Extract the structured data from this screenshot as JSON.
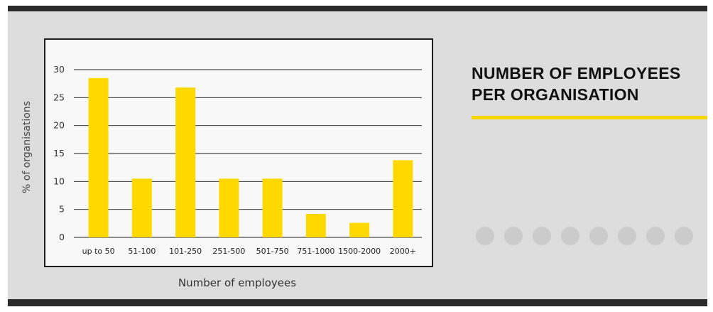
{
  "title_line1": "NUMBER OF EMPLOYEES",
  "title_line2": "PER ORGANISATION",
  "accent_color": "#f5d600",
  "bar_color": "#ffd800",
  "pagination_count": 8,
  "chart_data": {
    "type": "bar",
    "title": "NUMBER OF EMPLOYEES PER ORGANISATION",
    "xlabel": "Number of employees",
    "ylabel": "% of organisations",
    "categories": [
      "up to 50",
      "51-100",
      "101-250",
      "251-500",
      "501-750",
      "751-1000",
      "1500-2000",
      "2000+"
    ],
    "values": [
      28.5,
      10.5,
      26.8,
      10.5,
      10.5,
      4.2,
      2.6,
      13.8
    ],
    "ylim": [
      0,
      30
    ],
    "yticks": [
      0,
      5,
      10,
      15,
      20,
      25,
      30
    ],
    "grid": true,
    "legend": "none"
  }
}
